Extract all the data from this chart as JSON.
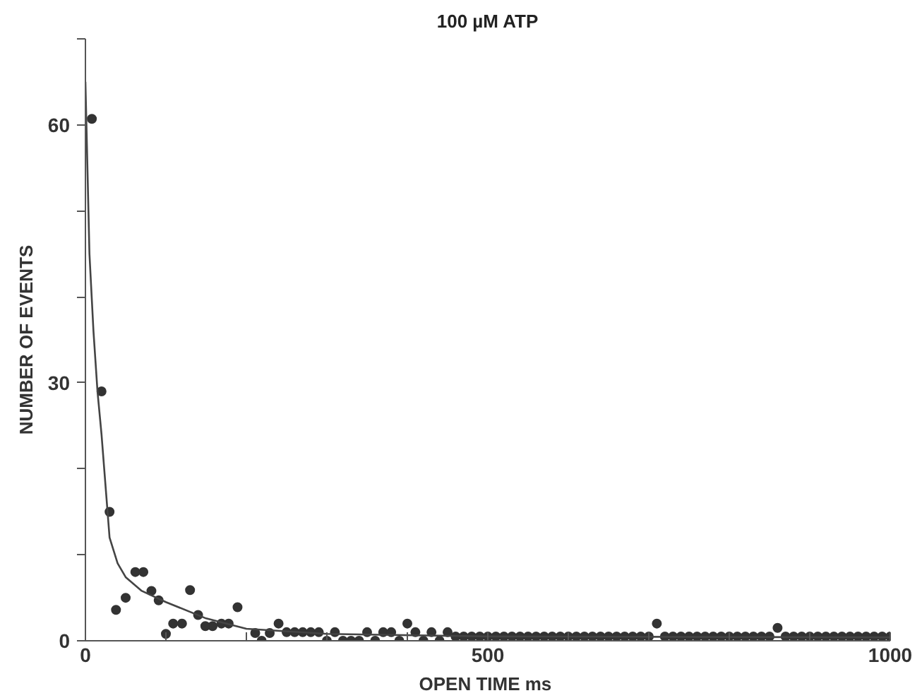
{
  "chart_data": {
    "type": "scatter",
    "title": "100 µM ATP",
    "xlabel": "OPEN TIME  ms",
    "ylabel": "NUMBER OF EVENTS",
    "xlim": [
      0,
      1000
    ],
    "ylim": [
      0,
      70
    ],
    "xticks": [
      0,
      {
        "value": 100,
        "label": null
      },
      {
        "value": 200,
        "label": null
      },
      {
        "value": 300,
        "label": null
      },
      {
        "value": 400,
        "label": null
      },
      500,
      {
        "value": 600,
        "label": null
      },
      {
        "value": 700,
        "label": null
      },
      {
        "value": 800,
        "label": null
      },
      {
        "value": 900,
        "label": null
      },
      1000
    ],
    "yticks": [
      0,
      {
        "value": 10,
        "label": null
      },
      {
        "value": 20,
        "label": null
      },
      30,
      {
        "value": 40,
        "label": null
      },
      {
        "value": 50,
        "label": null
      },
      60,
      {
        "value": 70,
        "label": null
      }
    ],
    "grid": false,
    "marker": "circle",
    "series": [
      {
        "color": "#333333",
        "x": [
          8,
          20,
          30,
          38,
          50,
          62,
          72,
          82,
          91,
          100,
          109,
          120,
          130,
          140,
          149,
          158,
          169,
          178,
          189,
          211,
          219,
          229,
          240,
          250,
          260,
          270,
          280,
          290,
          300,
          310,
          320,
          330,
          340,
          350,
          360,
          370,
          380,
          390,
          400,
          410,
          420,
          430,
          440,
          450,
          460,
          470,
          480,
          490,
          500,
          510,
          520,
          530,
          540,
          550,
          560,
          570,
          580,
          590,
          600,
          610,
          620,
          630,
          640,
          650,
          660,
          670,
          680,
          690,
          700,
          710,
          720,
          730,
          740,
          750,
          760,
          770,
          780,
          790,
          800,
          810,
          820,
          830,
          840,
          850,
          860,
          870,
          880,
          890,
          900,
          910,
          920,
          930,
          940,
          950,
          960,
          970,
          980,
          990,
          1000
        ],
        "values": [
          60.7,
          29,
          15,
          3.6,
          5,
          8,
          8,
          5.8,
          4.7,
          0.8,
          2,
          2,
          5.9,
          3,
          1.7,
          1.7,
          2,
          2,
          3.9,
          0.9,
          0,
          0.9,
          2,
          1,
          1,
          1,
          1,
          1,
          0,
          1,
          0,
          0,
          0,
          1,
          0,
          1,
          1,
          0,
          2,
          1,
          0,
          1,
          0,
          1,
          0.5,
          0.5,
          0.5,
          0.5,
          0.5,
          0.5,
          0.5,
          0.5,
          0.5,
          0.5,
          0.5,
          0.5,
          0.5,
          0.5,
          0.5,
          0.5,
          0.5,
          0.5,
          0.5,
          0.5,
          0.5,
          0.5,
          0.5,
          0.5,
          0.5,
          2,
          0.5,
          0.5,
          0.5,
          0.5,
          0.5,
          0.5,
          0.5,
          0.5,
          0.5,
          0.5,
          0.5,
          0.5,
          0.5,
          0.5,
          1.5,
          0.5,
          0.5,
          0.5,
          0.5,
          0.5,
          0.5,
          0.5,
          0.5,
          0.5,
          0.5,
          0.5,
          0.5,
          0.5,
          0.5
        ]
      },
      {
        "type": "line",
        "marker": "none",
        "color": "#444444",
        "x": [
          0,
          5,
          10,
          15,
          20,
          30,
          40,
          50,
          70,
          100,
          150,
          200,
          300,
          500,
          1000
        ],
        "values": [
          65,
          45,
          36,
          29,
          24,
          12,
          9,
          7.4,
          5.8,
          4.5,
          2.6,
          1.4,
          0.8,
          0.5,
          0.4
        ]
      }
    ]
  }
}
